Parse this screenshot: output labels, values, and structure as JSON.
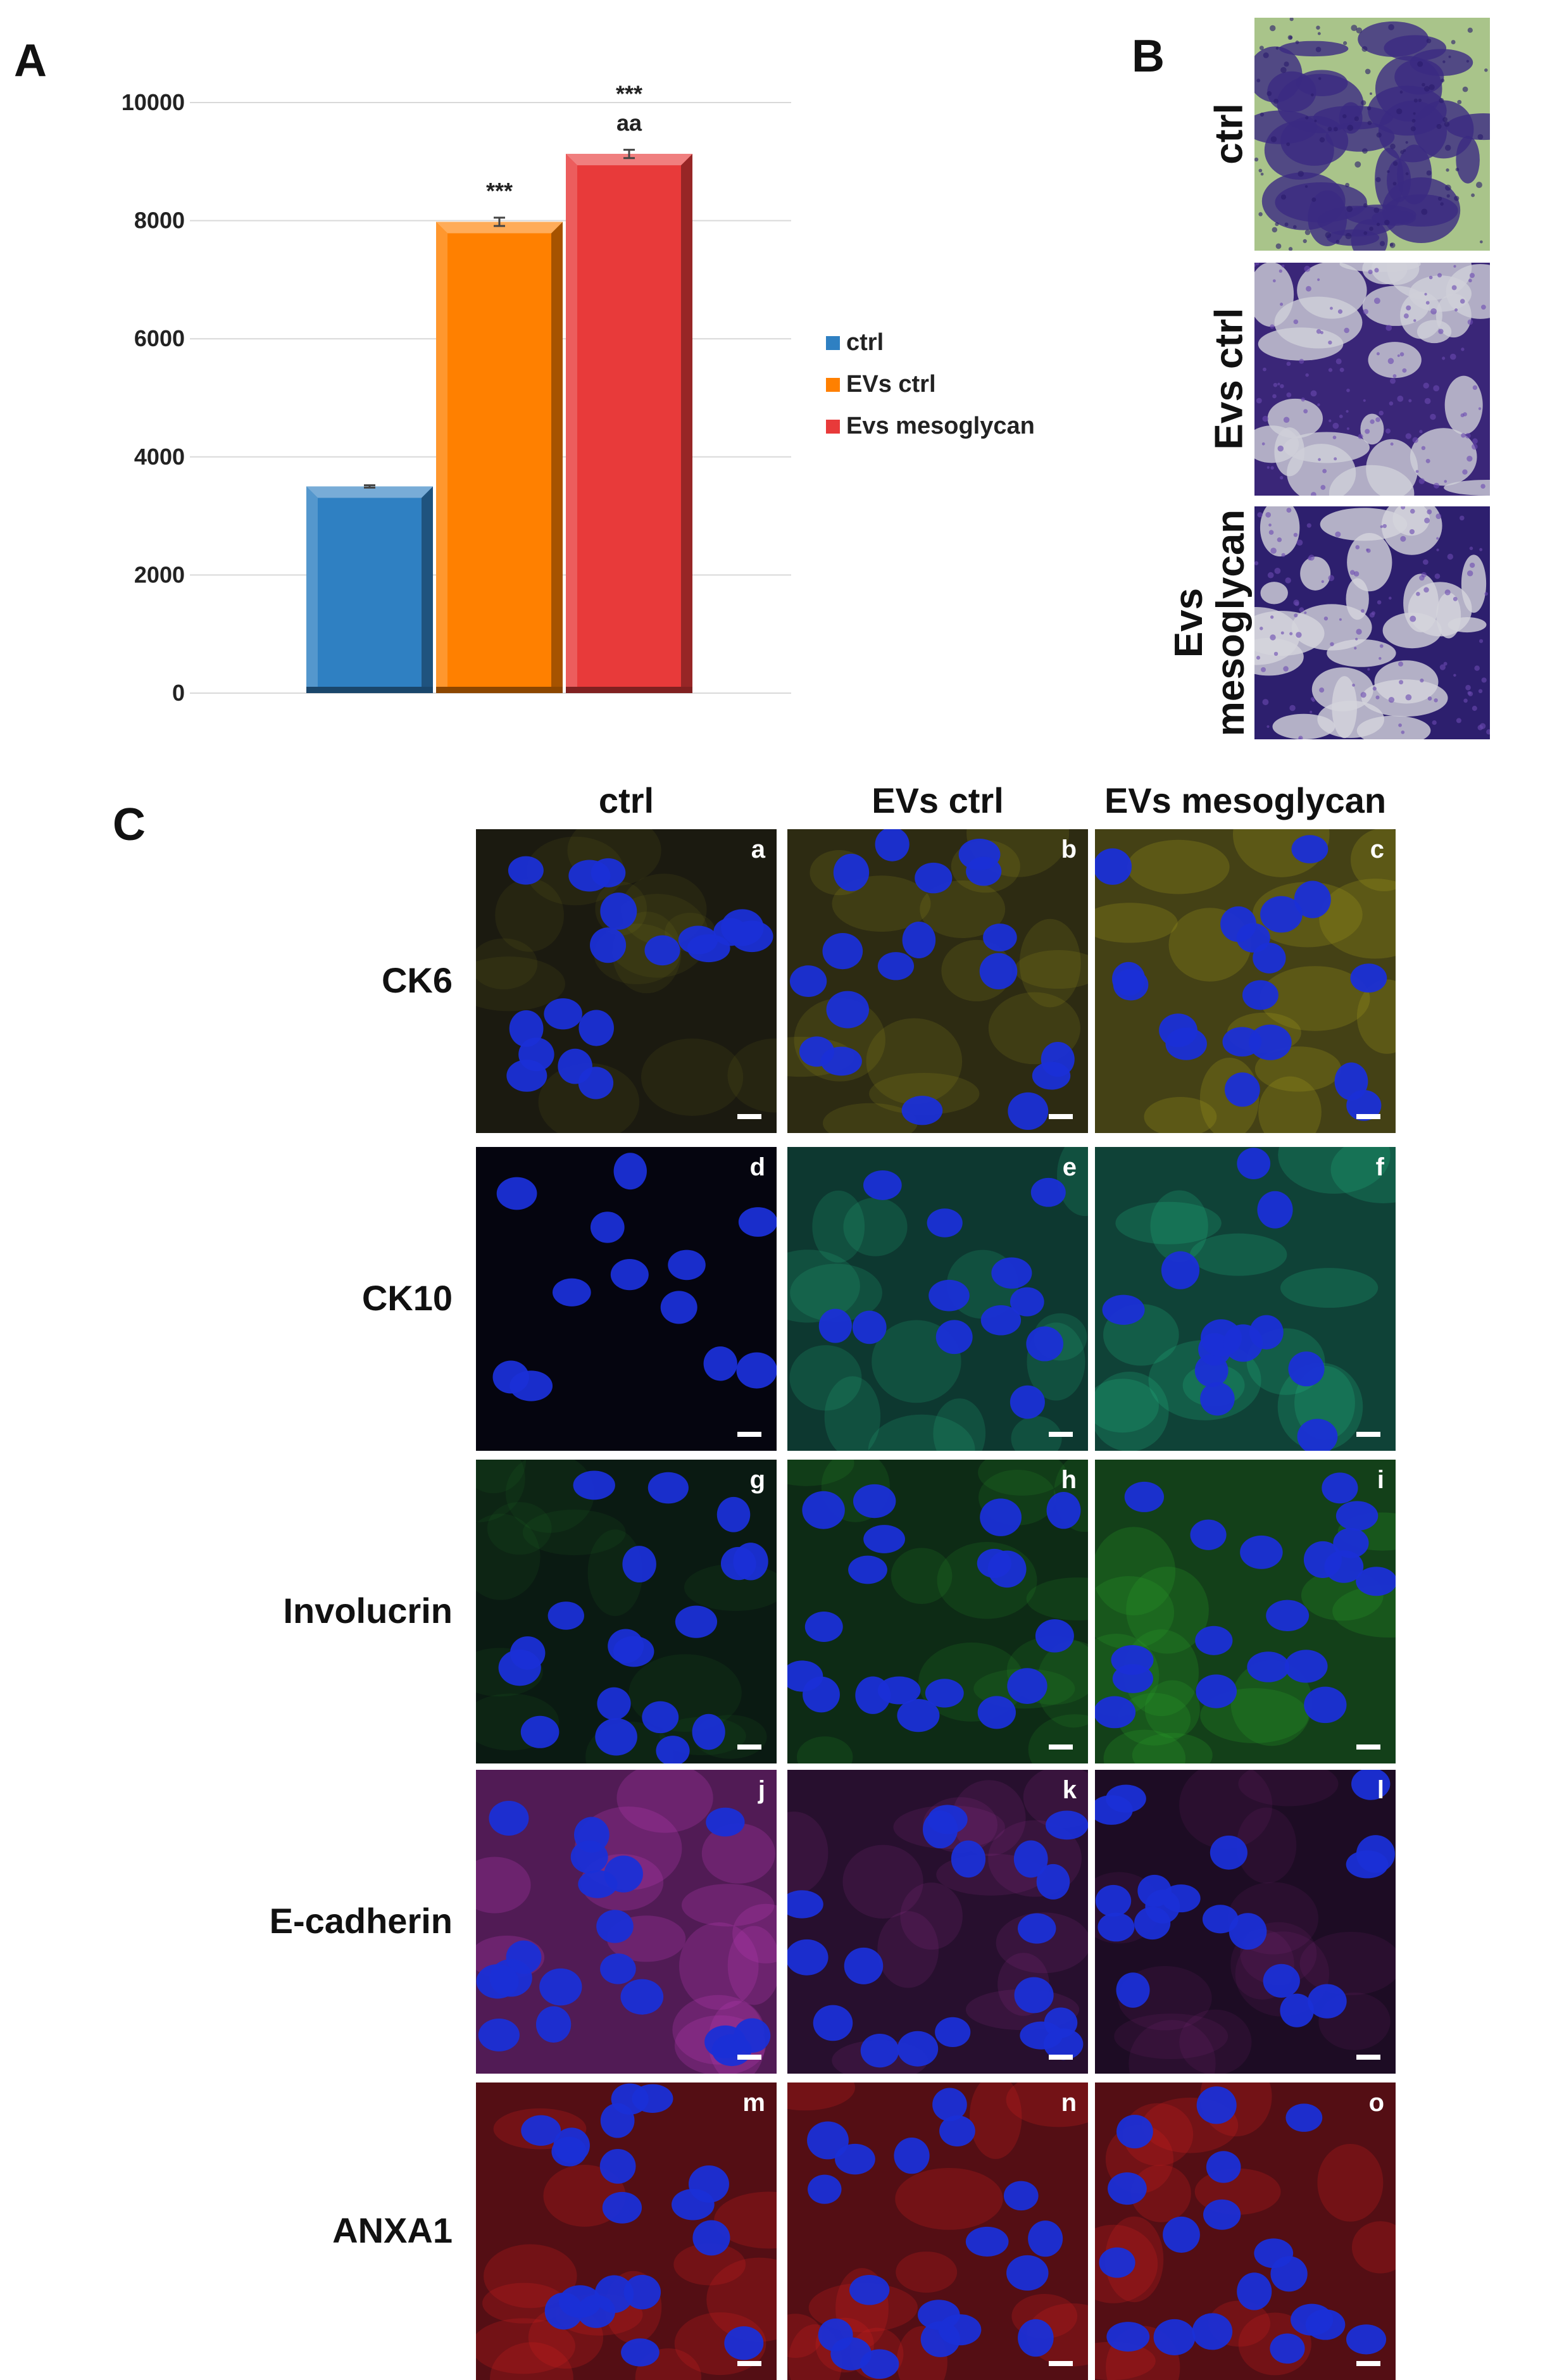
{
  "panel_a": {
    "letter": "A",
    "chart_data": {
      "type": "bar",
      "categories": [
        "ctrl",
        "EVs ctrl",
        "Evs mesoglycan"
      ],
      "values": [
        3500,
        7980,
        9130
      ],
      "errors": [
        20,
        70,
        70
      ],
      "significance": [
        "",
        "***",
        "***\naa"
      ],
      "colors": [
        "#2f80c2",
        "#ff8000",
        "#e83a3a"
      ],
      "ylim": [
        0,
        10000
      ],
      "yticks": [
        "0",
        "2000",
        "4000",
        "6000",
        "8000",
        "10000"
      ],
      "grid": true,
      "legend": {
        "placement": "right",
        "entries": [
          "ctrl",
          "EVs ctrl",
          "Evs mesoglycan"
        ]
      },
      "title": "",
      "xlabel": "",
      "ylabel": ""
    }
  },
  "panel_b": {
    "letter": "B",
    "rows": [
      {
        "label": "ctrl",
        "base": "#a9c48a",
        "stain": "#3b2a82"
      },
      {
        "label": "Evs ctrl",
        "base": "#3a2678",
        "stain": "#cfcfd8"
      },
      {
        "label": "Evs mesoglycan",
        "base": "#2d1f6e",
        "stain": "#d4d4dc"
      }
    ]
  },
  "panel_c": {
    "letter": "C",
    "columns": [
      "ctrl",
      "EVs ctrl",
      "EVs mesoglycan"
    ],
    "rows": [
      {
        "label": "CK6",
        "stain_color": "#a8a21e",
        "letters": [
          "a",
          "b",
          "c"
        ]
      },
      {
        "label": "CK10",
        "stain_color": "#25c08a",
        "letters": [
          "d",
          "e",
          "f"
        ]
      },
      {
        "label": "Involucrin",
        "stain_color": "#2aa02a",
        "letters": [
          "g",
          "h",
          "i"
        ]
      },
      {
        "label": "E-cadherin",
        "stain_color": "#b53ab0",
        "letters": [
          "j",
          "k",
          "l"
        ]
      },
      {
        "label": "ANXA1",
        "stain_color": "#c81e1e",
        "letters": [
          "m",
          "n",
          "o"
        ]
      }
    ]
  }
}
